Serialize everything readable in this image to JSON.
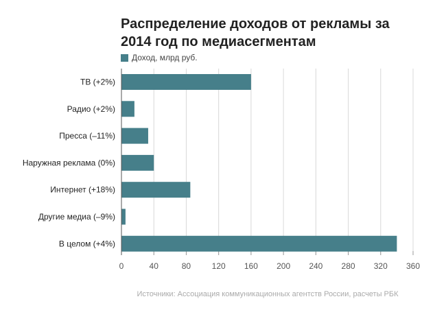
{
  "chart_data": {
    "type": "bar",
    "orientation": "horizontal",
    "title": "Распределение доходов от рекламы за 2014 год по медиасегментам",
    "title_lines": [
      "Распределение доходов от рекламы за",
      "2014 год по медиасегментам"
    ],
    "legend": [
      "Доход, млрд руб."
    ],
    "legend_placement": "top-left",
    "categories": [
      "ТВ (+2%)",
      "Радио (+2%)",
      "Пресса (–11%)",
      "Наружная реклама (0%)",
      "Интернет (+18%)",
      "Другие медиа (–9%)",
      "В целом (+4%)"
    ],
    "series": [
      {
        "name": "Доход, млрд руб.",
        "values": [
          160,
          16,
          33,
          40,
          85,
          5,
          340
        ]
      }
    ],
    "xlim": [
      0,
      360
    ],
    "xticks": [
      "0",
      "40",
      "80",
      "120",
      "160",
      "200",
      "240",
      "280",
      "320",
      "360"
    ],
    "xtick_values": [
      0,
      40,
      80,
      120,
      160,
      200,
      240,
      280,
      320,
      360
    ],
    "grid": true,
    "color": "#467f8a",
    "source": "Источники: Ассоциация коммуникационных агентств России, расчеты РБК"
  }
}
